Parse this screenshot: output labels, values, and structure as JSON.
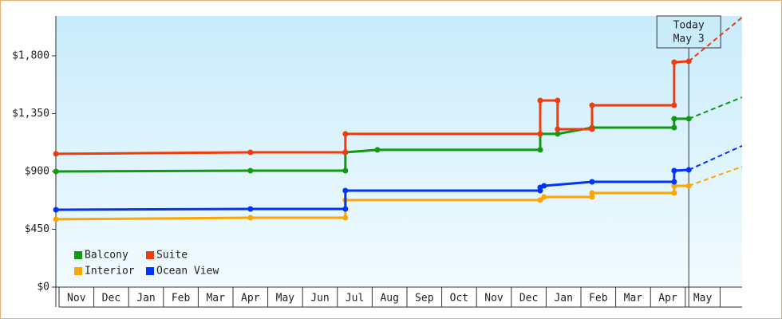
{
  "chart_data": {
    "type": "step-line",
    "categories": [
      "Nov",
      "Dec",
      "Jan",
      "Feb",
      "Mar",
      "Apr",
      "May",
      "Jun",
      "Jul",
      "Aug",
      "Sep",
      "Oct",
      "Nov",
      "Dec",
      "Jan",
      "Feb",
      "Mar",
      "Apr",
      "May"
    ],
    "xlim": [
      -0.1,
      19.6
    ],
    "ylim": [
      0,
      2110
    ],
    "yticks": [
      {
        "value": 0,
        "label": "$0"
      },
      {
        "value": 450,
        "label": "$450"
      },
      {
        "value": 900,
        "label": "$900"
      },
      {
        "value": 1350,
        "label": "$1,350"
      },
      {
        "value": 1800,
        "label": "$1,800"
      }
    ],
    "annotation": {
      "lines": [
        "Today",
        "May 3"
      ],
      "x": 18.1
    },
    "legend": "bottom-left",
    "series": [
      {
        "name": "Balcony",
        "color": "#119911",
        "x": [
          -0.09,
          5.5,
          8.23,
          8.23,
          9.15,
          13.83,
          13.83,
          14.33,
          15.32,
          17.68,
          17.68,
          18.1
        ],
        "values": [
          900,
          906,
          906,
          1049,
          1068,
          1068,
          1192,
          1192,
          1241,
          1241,
          1310,
          1310
        ],
        "forecast": {
          "x": [
            18.1,
            19.63
          ],
          "values": [
            1310,
            1477
          ]
        }
      },
      {
        "name": "Suite",
        "color": "#f03c0c",
        "x": [
          -0.09,
          5.5,
          8.23,
          8.23,
          13.83,
          13.83,
          14.33,
          14.33,
          15.32,
          15.32,
          17.68,
          17.68,
          18.1
        ],
        "values": [
          1037,
          1049,
          1049,
          1192,
          1192,
          1452,
          1452,
          1229,
          1229,
          1415,
          1415,
          1750,
          1757
        ],
        "forecast": {
          "x": [
            18.1,
            19.63
          ],
          "values": [
            1757,
            2098
          ]
        }
      },
      {
        "name": "Interior",
        "color": "#ffa500",
        "x": [
          -0.09,
          5.5,
          8.23,
          8.23,
          13.83,
          13.94,
          15.32,
          15.32,
          17.68,
          17.68,
          18.1
        ],
        "values": [
          528,
          540,
          540,
          677,
          677,
          701,
          701,
          732,
          732,
          788,
          788
        ],
        "forecast": {
          "x": [
            18.1,
            19.63
          ],
          "values": [
            788,
            937
          ]
        }
      },
      {
        "name": "Ocean View",
        "color": "#0033ff",
        "x": [
          -0.09,
          5.5,
          8.23,
          8.23,
          13.83,
          13.83,
          13.94,
          15.32,
          17.68,
          17.68,
          18.1
        ],
        "values": [
          602,
          608,
          608,
          751,
          751,
          776,
          788,
          819,
          819,
          906,
          912
        ],
        "forecast": {
          "x": [
            18.1,
            19.63
          ],
          "values": [
            912,
            1099
          ]
        }
      }
    ]
  }
}
